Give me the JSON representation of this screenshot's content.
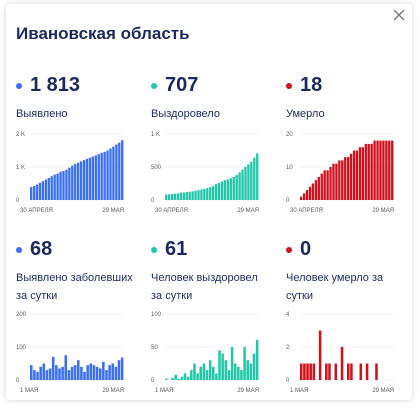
{
  "title": "Ивановская область",
  "colors": {
    "blue": "#3b6ef0",
    "teal": "#21c7a8",
    "red": "#d1101b"
  },
  "cards": [
    {
      "value": "1 813",
      "label": "Выявлено",
      "color": "#3b6ef0"
    },
    {
      "value": "707",
      "label": "Выздоровело",
      "color": "#21c7a8"
    },
    {
      "value": "18",
      "label": "Умерло",
      "color": "#d1101b"
    },
    {
      "value": "68",
      "label": "Выявлено заболевших за сутки",
      "color": "#3b6ef0"
    },
    {
      "value": "61",
      "label": "Человек выздоровел за сутки",
      "color": "#21c7a8"
    },
    {
      "value": "0",
      "label": "Человек умерло за сутки",
      "color": "#d1101b"
    }
  ],
  "chart_data": [
    {
      "type": "bar",
      "name": "",
      "color": "#3b6ef0",
      "y_ticks": [
        "2 K",
        "1 K",
        "0"
      ],
      "ylim": [
        0,
        2000
      ],
      "x_labels": [
        "30 АПРЕЛЯ",
        "29 МАЯ"
      ],
      "values": [
        390,
        430,
        470,
        520,
        570,
        620,
        670,
        720,
        770,
        800,
        850,
        880,
        920,
        980,
        1040,
        1090,
        1130,
        1170,
        1210,
        1250,
        1280,
        1320,
        1350,
        1390,
        1430,
        1460,
        1500,
        1560,
        1620,
        1680,
        1740,
        1813
      ]
    },
    {
      "type": "bar",
      "name": "",
      "color": "#21c7a8",
      "y_ticks": [
        "1 K",
        "500",
        "0"
      ],
      "ylim": [
        0,
        1000
      ],
      "x_labels": [
        "30 АПРЕЛЯ",
        "29 МАЯ"
      ],
      "values": [
        80,
        85,
        90,
        95,
        100,
        110,
        115,
        120,
        125,
        130,
        140,
        150,
        160,
        170,
        180,
        195,
        210,
        240,
        260,
        280,
        300,
        310,
        330,
        350,
        380,
        420,
        460,
        500,
        540,
        580,
        640,
        707
      ]
    },
    {
      "type": "bar",
      "name": "",
      "color": "#d1101b",
      "y_ticks": [
        "20",
        "10",
        "0"
      ],
      "ylim": [
        0,
        20
      ],
      "x_labels": [
        "30 АПРЕЛЯ",
        "29 МАЯ"
      ],
      "values": [
        1,
        2,
        3,
        4,
        5,
        6,
        7,
        8,
        9,
        9,
        10,
        11,
        11,
        12,
        12,
        13,
        13,
        14,
        15,
        15,
        16,
        16,
        17,
        17,
        17,
        18,
        18,
        18,
        18,
        18,
        18,
        18
      ]
    },
    {
      "type": "bar",
      "name": "",
      "color": "#3b6ef0",
      "y_ticks": [
        "200",
        "100",
        "0"
      ],
      "ylim": [
        0,
        200
      ],
      "x_labels": [
        "1 МАЯ",
        "29 МАЯ"
      ],
      "values": [
        45,
        30,
        25,
        40,
        50,
        30,
        35,
        70,
        45,
        35,
        40,
        75,
        30,
        40,
        45,
        60,
        40,
        25,
        45,
        50,
        45,
        40,
        35,
        55,
        30,
        45,
        50,
        40,
        60,
        68
      ]
    },
    {
      "type": "bar",
      "name": "",
      "color": "#21c7a8",
      "y_ticks": [
        "100",
        "50",
        "0"
      ],
      "ylim": [
        0,
        100
      ],
      "x_labels": [
        "1 МАЯ",
        "29 МАЯ"
      ],
      "values": [
        2,
        0,
        3,
        8,
        2,
        5,
        10,
        5,
        15,
        25,
        10,
        20,
        25,
        15,
        30,
        20,
        10,
        45,
        40,
        30,
        15,
        50,
        25,
        20,
        15,
        50,
        30,
        25,
        40,
        61
      ]
    },
    {
      "type": "bar",
      "name": "",
      "color": "#d1101b",
      "y_ticks": [
        "4",
        "2",
        "0"
      ],
      "ylim": [
        0,
        4
      ],
      "x_labels": [
        "1 МАЯ",
        "29 МАЯ"
      ],
      "values": [
        1,
        1,
        1,
        1,
        1,
        0,
        3,
        0,
        1,
        1,
        0,
        1,
        0,
        2,
        0,
        1,
        1,
        0,
        0,
        1,
        0,
        1,
        0,
        0,
        1,
        0,
        0,
        0,
        0,
        0
      ]
    }
  ]
}
